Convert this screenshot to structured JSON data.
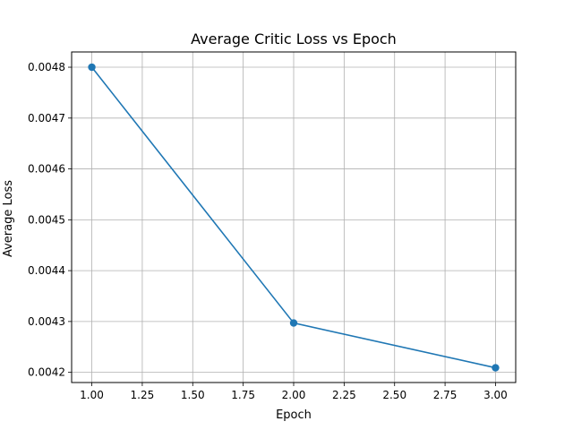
{
  "chart_data": {
    "type": "line",
    "title": "Average Critic Loss vs Epoch",
    "xlabel": "Epoch",
    "ylabel": "Average Loss",
    "xlim": [
      0.9,
      3.1
    ],
    "ylim": [
      0.00418,
      0.00483
    ],
    "grid": true,
    "x_ticks": [
      1.0,
      1.25,
      1.5,
      1.75,
      2.0,
      2.25,
      2.5,
      2.75,
      3.0
    ],
    "x_tick_labels": [
      "1.00",
      "1.25",
      "1.50",
      "1.75",
      "2.00",
      "2.25",
      "2.50",
      "2.75",
      "3.00"
    ],
    "y_ticks": [
      0.0042,
      0.0043,
      0.0044,
      0.0045,
      0.0046,
      0.0047,
      0.0048
    ],
    "y_tick_labels": [
      "0.0042",
      "0.0043",
      "0.0044",
      "0.0045",
      "0.0046",
      "0.0047",
      "0.0048"
    ],
    "series": [
      {
        "x": [
          1,
          2,
          3
        ],
        "values": [
          0.0048,
          0.004297,
          0.004209
        ],
        "color": "#1f77b4",
        "marker": "circle"
      }
    ]
  }
}
